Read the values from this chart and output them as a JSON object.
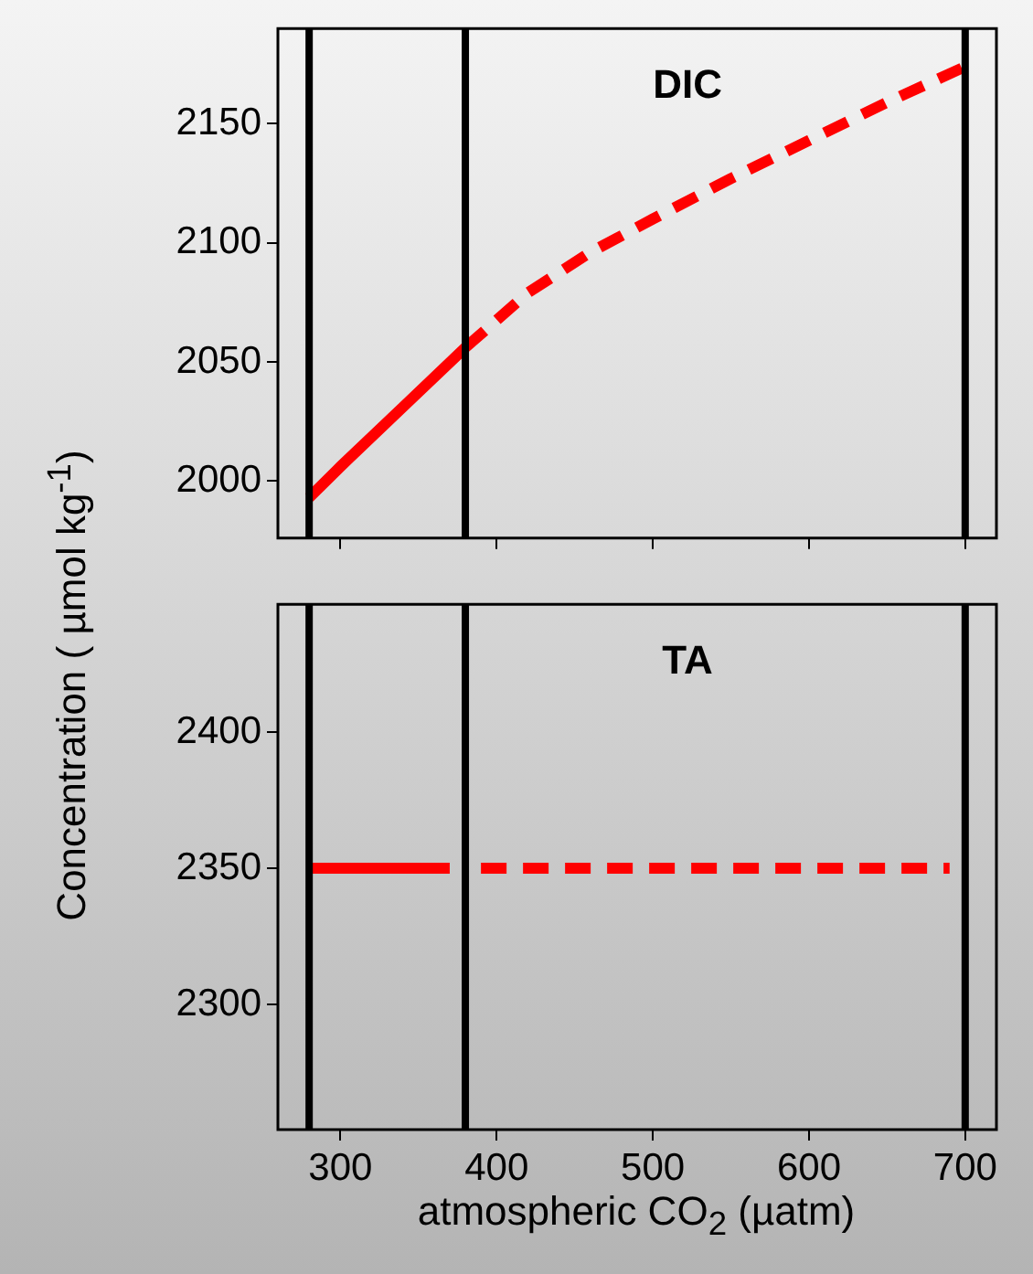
{
  "chart_data": [
    {
      "type": "line",
      "title": "DIC",
      "ylabel": "Concentration ( µmol kg$^{-1}$)",
      "xlim": [
        260,
        720
      ],
      "xticks": [
        300,
        400,
        500,
        600,
        700
      ],
      "ylim": [
        1976,
        2190
      ],
      "yticks": [
        2000,
        2050,
        2100,
        2150
      ],
      "tick_labels": "y",
      "series": [
        {
          "color": "#ff0000",
          "line_style": "solid",
          "x": [
            280,
            300,
            340,
            380
          ],
          "values": [
            1993,
            2006,
            2031,
            2056
          ]
        },
        {
          "color": "#ff0000",
          "line_style": "dashed",
          "x": [
            380,
            420,
            460,
            500,
            550,
            600,
            650,
            700
          ],
          "values": [
            2056,
            2079,
            2096,
            2110,
            2127,
            2143,
            2159,
            2174
          ]
        }
      ],
      "ref_lines": [
        {
          "axis": "x",
          "value": 280,
          "color": "#000000"
        },
        {
          "axis": "x",
          "value": 380,
          "color": "#000000"
        },
        {
          "axis": "x",
          "value": 700,
          "color": "#000000"
        }
      ]
    },
    {
      "type": "line",
      "title": "TA",
      "xlabel": "atmospheric CO$_{2}$ (µatm)",
      "xlim": [
        260,
        720
      ],
      "xticks": [
        300,
        400,
        500,
        600,
        700
      ],
      "ylim": [
        2254,
        2447
      ],
      "yticks": [
        2300,
        2350,
        2400
      ],
      "series": [
        {
          "color": "#ff0000",
          "line_style": "solid",
          "x": [
            280,
            370
          ],
          "values": [
            2350,
            2350
          ]
        },
        {
          "color": "#ff0000",
          "line_style": "dashed",
          "x": [
            390,
            690
          ],
          "values": [
            2350,
            2350
          ]
        }
      ],
      "ref_lines": [
        {
          "axis": "x",
          "value": 280,
          "color": "#000000"
        },
        {
          "axis": "x",
          "value": 380,
          "color": "#000000"
        },
        {
          "axis": "x",
          "value": 700,
          "color": "#000000"
        }
      ]
    }
  ]
}
